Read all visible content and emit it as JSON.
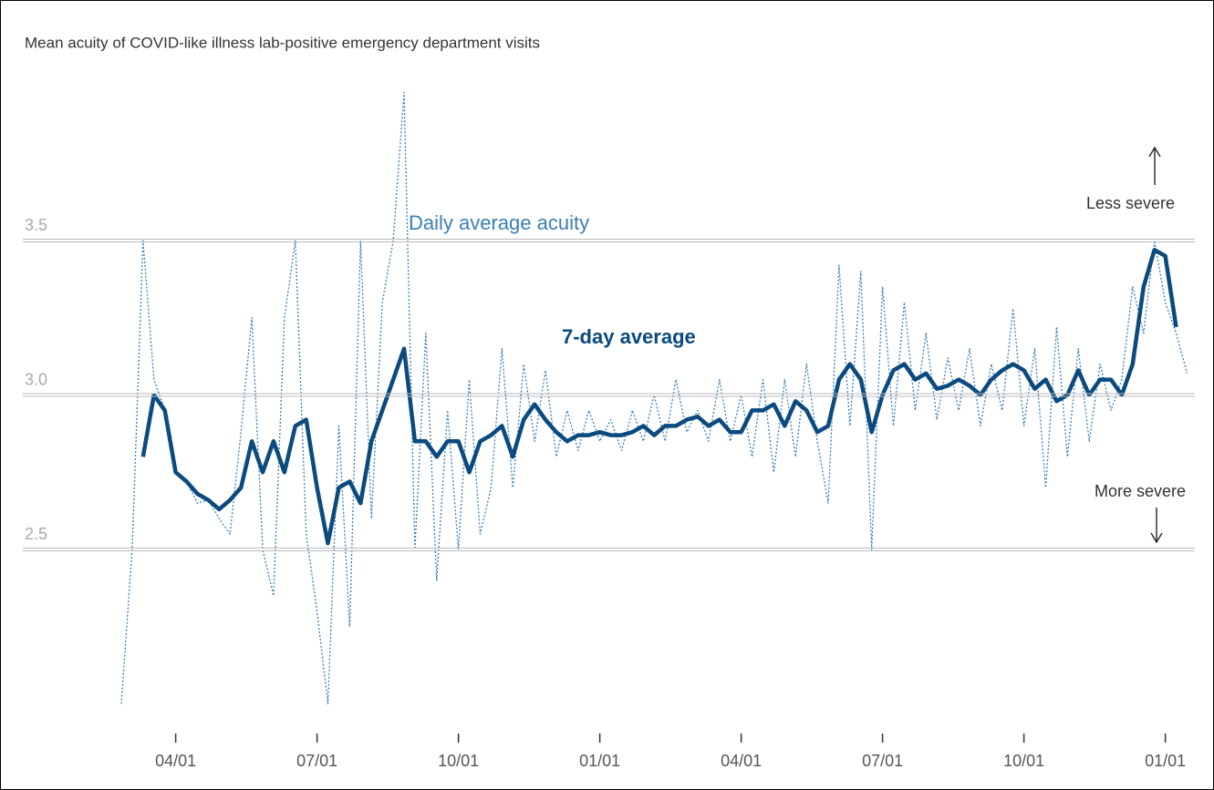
{
  "chart_data": {
    "type": "line",
    "title": "Mean acuity of COVID-like illness lab-positive emergency department visits",
    "categories": [
      null,
      null,
      null,
      null,
      null,
      "04/01",
      null,
      null,
      null,
      null,
      null,
      null,
      null,
      null,
      null,
      null,
      null,
      null,
      "07/01",
      null,
      null,
      null,
      null,
      null,
      null,
      null,
      null,
      null,
      null,
      null,
      null,
      "10/01",
      null,
      null,
      null,
      null,
      null,
      null,
      null,
      null,
      null,
      null,
      null,
      null,
      "01/01",
      null,
      null,
      null,
      null,
      null,
      null,
      null,
      null,
      null,
      null,
      null,
      null,
      "04/01",
      null,
      null,
      null,
      null,
      null,
      null,
      null,
      null,
      null,
      null,
      null,
      null,
      "07/01",
      null,
      null,
      null,
      null,
      null,
      null,
      null,
      null,
      null,
      null,
      null,
      null,
      "10/01",
      null,
      null,
      null,
      null,
      null,
      null,
      null,
      null,
      null,
      null,
      null,
      null,
      "01/01",
      null,
      null
    ],
    "series": [
      {
        "name": "Daily average acuity",
        "color": "#3a7fb5",
        "dashed": true,
        "values": [
          2.0,
          2.5,
          3.5,
          3.05,
          2.95,
          2.75,
          2.72,
          2.65,
          2.66,
          2.6,
          2.55,
          2.88,
          3.25,
          2.5,
          2.35,
          3.25,
          3.5,
          2.55,
          2.3,
          2.0,
          2.9,
          2.25,
          3.5,
          2.6,
          3.3,
          3.5,
          3.98,
          2.5,
          3.2,
          2.4,
          2.95,
          2.5,
          3.05,
          2.55,
          2.7,
          3.15,
          2.7,
          3.1,
          2.85,
          3.08,
          2.8,
          2.95,
          2.82,
          2.95,
          2.85,
          2.92,
          2.82,
          2.95,
          2.85,
          3.0,
          2.85,
          3.05,
          2.88,
          2.95,
          2.85,
          3.05,
          2.85,
          3.0,
          2.8,
          3.05,
          2.75,
          3.05,
          2.8,
          3.1,
          2.85,
          2.65,
          3.42,
          2.9,
          3.4,
          2.5,
          3.35,
          2.9,
          3.3,
          2.95,
          3.2,
          2.92,
          3.12,
          2.95,
          3.15,
          2.9,
          3.1,
          2.95,
          3.28,
          2.9,
          3.15,
          2.7,
          3.22,
          2.8,
          3.15,
          2.85,
          3.1,
          2.95,
          3.05,
          3.35,
          3.2,
          3.5,
          3.3,
          3.2,
          3.07
        ]
      },
      {
        "name": "7-day average",
        "color": "#0b4a7f",
        "values": [
          null,
          null,
          2.8,
          3.0,
          2.95,
          2.75,
          2.72,
          2.68,
          2.66,
          2.63,
          2.66,
          2.7,
          2.85,
          2.75,
          2.85,
          2.75,
          2.9,
          2.92,
          2.7,
          2.52,
          2.7,
          2.72,
          2.65,
          2.85,
          2.95,
          3.05,
          3.15,
          2.85,
          2.85,
          2.8,
          2.85,
          2.85,
          2.75,
          2.85,
          2.87,
          2.9,
          2.8,
          2.92,
          2.97,
          2.92,
          2.88,
          2.85,
          2.87,
          2.87,
          2.88,
          2.87,
          2.87,
          2.88,
          2.9,
          2.87,
          2.9,
          2.9,
          2.92,
          2.93,
          2.9,
          2.92,
          2.88,
          2.88,
          2.95,
          2.95,
          2.97,
          2.9,
          2.98,
          2.95,
          2.88,
          2.9,
          3.05,
          3.1,
          3.05,
          2.88,
          3.0,
          3.08,
          3.1,
          3.05,
          3.07,
          3.02,
          3.03,
          3.05,
          3.03,
          3.0,
          3.05,
          3.08,
          3.1,
          3.08,
          3.02,
          3.05,
          2.98,
          3.0,
          3.08,
          3.0,
          3.05,
          3.05,
          3.0,
          3.1,
          3.35,
          3.47,
          3.45,
          3.22,
          null
        ]
      }
    ],
    "annotations": [
      "Less severe",
      "More severe"
    ],
    "ylim": [
      2.0,
      4.0
    ],
    "yticks": [
      {
        "value": 2.5,
        "label": "2.5"
      },
      {
        "value": 3,
        "label": "3.0"
      },
      {
        "value": 3.5,
        "label": "3.5"
      }
    ],
    "grid": true
  }
}
